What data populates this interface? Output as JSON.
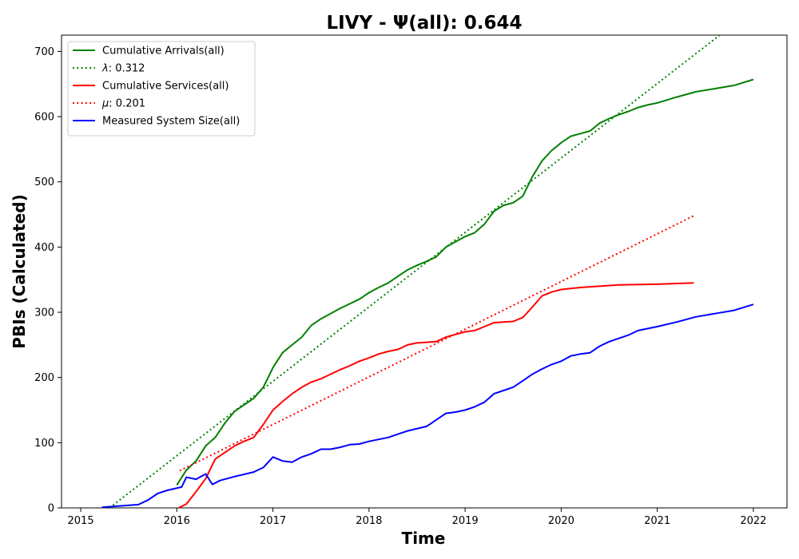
{
  "chart_data": {
    "type": "line",
    "title": "LIVY -  Ψ(all): 0.644",
    "xlabel": "Time",
    "ylabel": "PBIs (Calculated)",
    "xlim": [
      2014.8,
      2022.35
    ],
    "ylim": [
      0,
      725
    ],
    "x_ticks": [
      2015,
      2016,
      2017,
      2018,
      2019,
      2020,
      2021,
      2022
    ],
    "x_tick_labels": [
      "2015",
      "2016",
      "2017",
      "2018",
      "2019",
      "2020",
      "2021",
      "2022"
    ],
    "y_ticks": [
      0,
      100,
      200,
      300,
      400,
      500,
      600,
      700
    ],
    "y_tick_labels": [
      "0",
      "100",
      "200",
      "300",
      "400",
      "500",
      "600",
      "700"
    ],
    "grid": false,
    "legend_position": "top-left",
    "series": [
      {
        "name": "Cumulative Arrivals(all)",
        "color": "#008000",
        "style": "solid",
        "points": [
          [
            2016.0,
            35
          ],
          [
            2016.1,
            58
          ],
          [
            2016.2,
            72
          ],
          [
            2016.3,
            95
          ],
          [
            2016.4,
            108
          ],
          [
            2016.5,
            130
          ],
          [
            2016.6,
            148
          ],
          [
            2016.7,
            158
          ],
          [
            2016.8,
            168
          ],
          [
            2016.9,
            185
          ],
          [
            2017.0,
            215
          ],
          [
            2017.1,
            238
          ],
          [
            2017.2,
            250
          ],
          [
            2017.3,
            262
          ],
          [
            2017.4,
            280
          ],
          [
            2017.5,
            290
          ],
          [
            2017.6,
            298
          ],
          [
            2017.7,
            306
          ],
          [
            2017.8,
            313
          ],
          [
            2017.9,
            320
          ],
          [
            2018.0,
            330
          ],
          [
            2018.1,
            338
          ],
          [
            2018.2,
            345
          ],
          [
            2018.3,
            355
          ],
          [
            2018.4,
            365
          ],
          [
            2018.5,
            372
          ],
          [
            2018.6,
            378
          ],
          [
            2018.7,
            385
          ],
          [
            2018.8,
            400
          ],
          [
            2018.9,
            408
          ],
          [
            2019.0,
            416
          ],
          [
            2019.1,
            422
          ],
          [
            2019.2,
            435
          ],
          [
            2019.3,
            455
          ],
          [
            2019.4,
            464
          ],
          [
            2019.5,
            468
          ],
          [
            2019.6,
            478
          ],
          [
            2019.7,
            508
          ],
          [
            2019.8,
            532
          ],
          [
            2019.9,
            548
          ],
          [
            2020.0,
            560
          ],
          [
            2020.1,
            570
          ],
          [
            2020.2,
            574
          ],
          [
            2020.3,
            578
          ],
          [
            2020.4,
            590
          ],
          [
            2020.5,
            597
          ],
          [
            2020.6,
            603
          ],
          [
            2020.7,
            608
          ],
          [
            2020.8,
            614
          ],
          [
            2020.9,
            618
          ],
          [
            2021.0,
            621
          ],
          [
            2021.2,
            630
          ],
          [
            2021.4,
            638
          ],
          [
            2021.6,
            643
          ],
          [
            2021.8,
            648
          ],
          [
            2022.0,
            657
          ]
        ]
      },
      {
        "name": "λ: 0.312",
        "label_italic_symbol": "λ",
        "label_value": ": 0.312",
        "color": "#008000",
        "style": "dotted",
        "points": [
          [
            2015.3,
            0
          ],
          [
            2021.65,
            725
          ]
        ]
      },
      {
        "name": "Cumulative Services(all)",
        "color": "#ff0000",
        "style": "solid",
        "points": [
          [
            2016.02,
            0
          ],
          [
            2016.1,
            6
          ],
          [
            2016.2,
            25
          ],
          [
            2016.3,
            45
          ],
          [
            2016.4,
            75
          ],
          [
            2016.5,
            85
          ],
          [
            2016.6,
            95
          ],
          [
            2016.7,
            102
          ],
          [
            2016.8,
            108
          ],
          [
            2016.9,
            128
          ],
          [
            2017.0,
            150
          ],
          [
            2017.1,
            163
          ],
          [
            2017.2,
            175
          ],
          [
            2017.3,
            185
          ],
          [
            2017.4,
            193
          ],
          [
            2017.5,
            198
          ],
          [
            2017.6,
            205
          ],
          [
            2017.7,
            212
          ],
          [
            2017.8,
            218
          ],
          [
            2017.9,
            225
          ],
          [
            2018.0,
            230
          ],
          [
            2018.1,
            236
          ],
          [
            2018.2,
            240
          ],
          [
            2018.3,
            243
          ],
          [
            2018.4,
            250
          ],
          [
            2018.5,
            253
          ],
          [
            2018.6,
            254
          ],
          [
            2018.7,
            255
          ],
          [
            2018.8,
            262
          ],
          [
            2018.9,
            266
          ],
          [
            2019.0,
            270
          ],
          [
            2019.1,
            272
          ],
          [
            2019.2,
            278
          ],
          [
            2019.3,
            284
          ],
          [
            2019.4,
            285
          ],
          [
            2019.5,
            286
          ],
          [
            2019.6,
            292
          ],
          [
            2019.7,
            308
          ],
          [
            2019.8,
            325
          ],
          [
            2019.9,
            331
          ],
          [
            2020.0,
            335
          ],
          [
            2020.2,
            338
          ],
          [
            2020.4,
            340
          ],
          [
            2020.6,
            342
          ],
          [
            2021.0,
            343
          ],
          [
            2021.38,
            345
          ]
        ]
      },
      {
        "name": "μ: 0.201",
        "label_italic_symbol": "μ",
        "label_value": ": 0.201",
        "color": "#ff0000",
        "style": "dotted",
        "points": [
          [
            2016.03,
            57
          ],
          [
            2021.38,
            448
          ]
        ]
      },
      {
        "name": "Measured System Size(all)",
        "color": "#0000ff",
        "style": "solid",
        "points": [
          [
            2015.22,
            1
          ],
          [
            2015.4,
            3
          ],
          [
            2015.6,
            5
          ],
          [
            2015.7,
            12
          ],
          [
            2015.8,
            22
          ],
          [
            2015.9,
            27
          ],
          [
            2016.05,
            32
          ],
          [
            2016.1,
            47
          ],
          [
            2016.2,
            44
          ],
          [
            2016.3,
            52
          ],
          [
            2016.37,
            36
          ],
          [
            2016.45,
            42
          ],
          [
            2016.6,
            48
          ],
          [
            2016.8,
            55
          ],
          [
            2016.9,
            62
          ],
          [
            2017.0,
            78
          ],
          [
            2017.1,
            72
          ],
          [
            2017.2,
            70
          ],
          [
            2017.3,
            78
          ],
          [
            2017.4,
            83
          ],
          [
            2017.5,
            90
          ],
          [
            2017.6,
            90
          ],
          [
            2017.7,
            93
          ],
          [
            2017.8,
            97
          ],
          [
            2017.9,
            98
          ],
          [
            2018.0,
            102
          ],
          [
            2018.2,
            108
          ],
          [
            2018.3,
            113
          ],
          [
            2018.4,
            118
          ],
          [
            2018.6,
            125
          ],
          [
            2018.7,
            135
          ],
          [
            2018.8,
            145
          ],
          [
            2018.9,
            147
          ],
          [
            2019.0,
            150
          ],
          [
            2019.1,
            155
          ],
          [
            2019.2,
            162
          ],
          [
            2019.3,
            175
          ],
          [
            2019.4,
            180
          ],
          [
            2019.5,
            185
          ],
          [
            2019.6,
            195
          ],
          [
            2019.7,
            205
          ],
          [
            2019.8,
            213
          ],
          [
            2019.9,
            220
          ],
          [
            2020.0,
            225
          ],
          [
            2020.1,
            233
          ],
          [
            2020.2,
            236
          ],
          [
            2020.3,
            238
          ],
          [
            2020.4,
            248
          ],
          [
            2020.5,
            255
          ],
          [
            2020.6,
            260
          ],
          [
            2020.7,
            265
          ],
          [
            2020.8,
            272
          ],
          [
            2021.0,
            278
          ],
          [
            2021.2,
            285
          ],
          [
            2021.4,
            293
          ],
          [
            2021.6,
            298
          ],
          [
            2021.8,
            303
          ],
          [
            2022.0,
            312
          ]
        ]
      }
    ]
  }
}
